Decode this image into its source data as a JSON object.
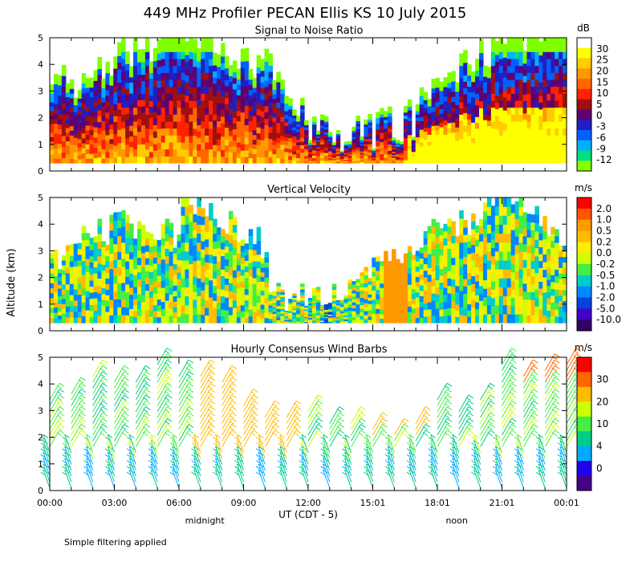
{
  "title": "449 MHz Profiler PECAN Ellis KS 10 July 2015",
  "xlabel": "UT  (CDT - 5)",
  "ylabel": "Altitude (km)",
  "time_marks": [
    {
      "t": 0,
      "label": "00:00"
    },
    {
      "t": 3,
      "label": "03:00"
    },
    {
      "t": 6,
      "label": "06:00"
    },
    {
      "t": 9,
      "label": "09:00"
    },
    {
      "t": 12,
      "label": "12:00"
    },
    {
      "t": 15,
      "label": "15:01"
    },
    {
      "t": 18,
      "label": "18:01"
    },
    {
      "t": 21,
      "label": "21:01"
    },
    {
      "t": 24,
      "label": "00:01"
    }
  ],
  "local_marks": [
    {
      "t": 7.2,
      "label": "midnight"
    },
    {
      "t": 18.9,
      "label": "noon"
    }
  ],
  "footnote": "Simple filtering applied",
  "chart_data": [
    {
      "type": "heatmap",
      "title": "Signal to Noise Ratio",
      "ylim": [
        0,
        5
      ],
      "yticks": [
        "0",
        "1",
        "2",
        "3",
        "4",
        "5"
      ],
      "xlim": [
        0,
        24
      ],
      "colorbar": {
        "unit": "dB",
        "labels": [
          "30",
          "25",
          "20",
          "15",
          "10",
          "5",
          "0",
          "-3",
          "-6",
          "-9",
          "-12"
        ],
        "colors": [
          "#ffffff",
          "#ffff00",
          "#ffcc00",
          "#ff9900",
          "#ff6600",
          "#ff2200",
          "#a01010",
          "#600070",
          "#2020c0",
          "#0060ff",
          "#00b0ff",
          "#00e080",
          "#80ff00"
        ]
      }
    },
    {
      "type": "heatmap",
      "title": "Vertical Velocity",
      "ylim": [
        0,
        5
      ],
      "yticks": [
        "0",
        "1",
        "2",
        "3",
        "4",
        "5"
      ],
      "xlim": [
        0,
        24
      ],
      "colorbar": {
        "unit": "m/s",
        "labels": [
          "2.0",
          "1.0",
          "0.5",
          "0.2",
          "0.0",
          "-0.2",
          "-0.5",
          "-1.0",
          "-2.0",
          "-5.0",
          "-10.0"
        ],
        "colors": [
          "#ff0000",
          "#ff5500",
          "#ff9900",
          "#ffbb00",
          "#ffee00",
          "#ccff00",
          "#44ee44",
          "#00cccc",
          "#0088ff",
          "#0044dd",
          "#4400cc",
          "#330066"
        ]
      }
    },
    {
      "type": "scatter",
      "title": "Hourly Consensus Wind Barbs",
      "ylim": [
        0,
        5
      ],
      "yticks": [
        "0",
        "1",
        "2",
        "3",
        "4",
        "5"
      ],
      "xlim": [
        0,
        24
      ],
      "colorbar": {
        "unit": "m/s",
        "labels": [
          "30",
          "20",
          "10",
          "4",
          "0"
        ],
        "colors": [
          "#ff0000",
          "#ff6600",
          "#ffbb00",
          "#ccff00",
          "#44ee44",
          "#00cc88",
          "#00aaff",
          "#2200ee",
          "#440088"
        ]
      }
    }
  ]
}
